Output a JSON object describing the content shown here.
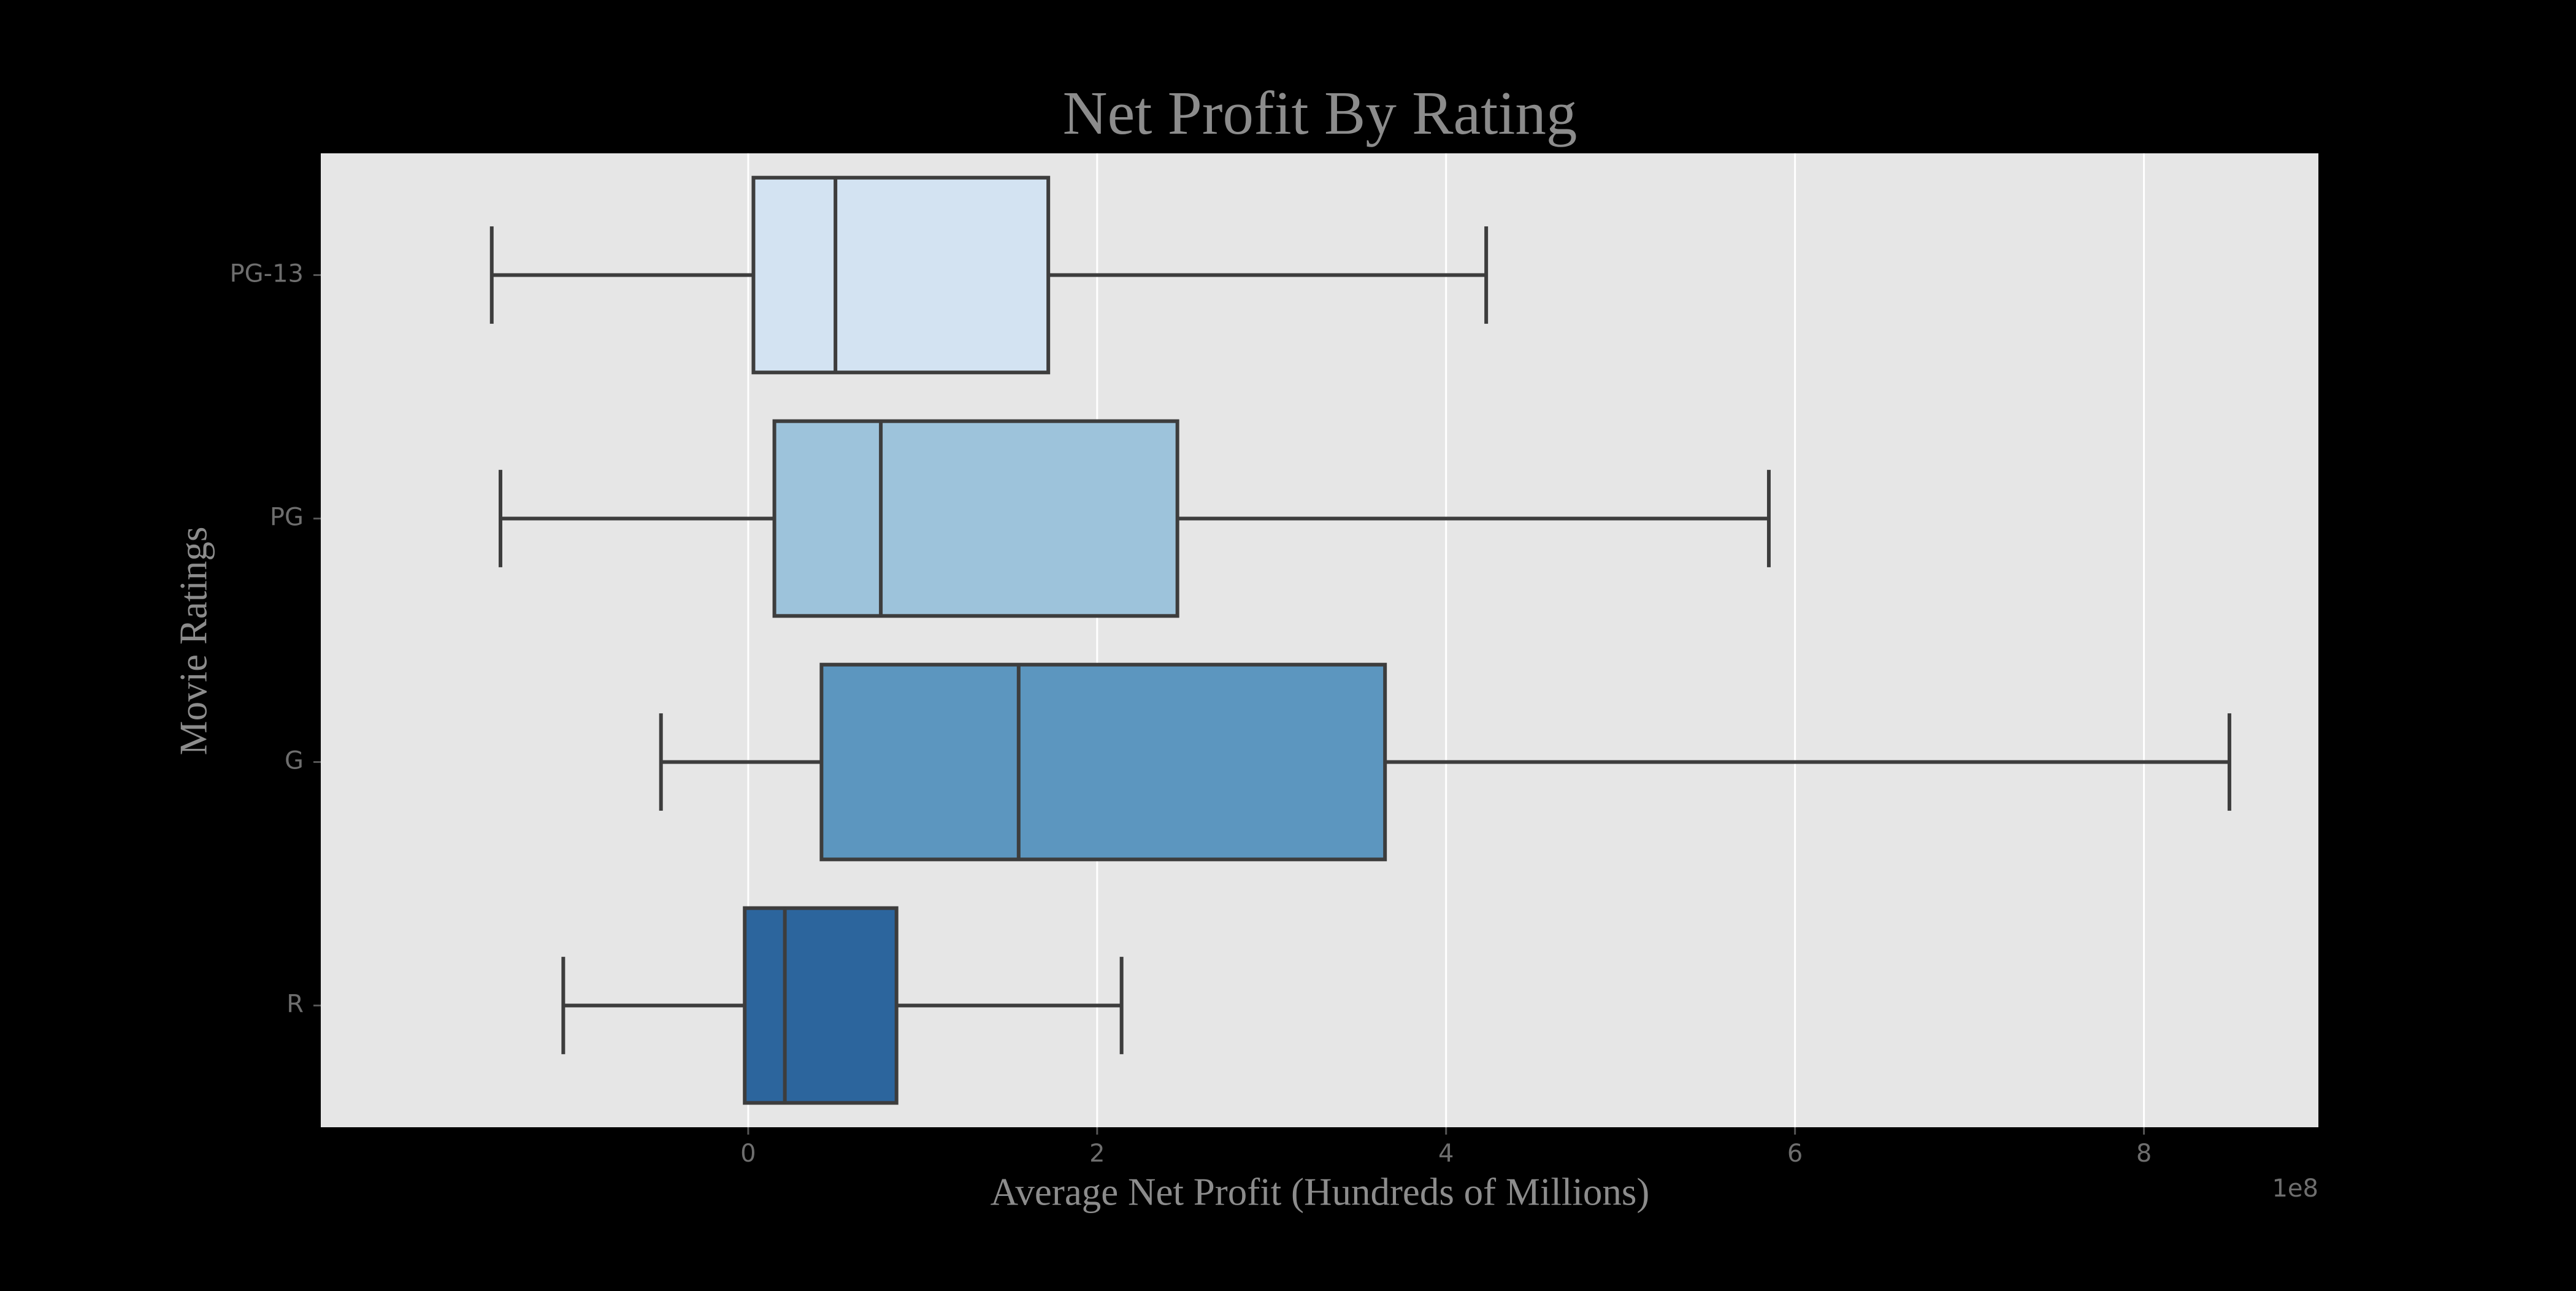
{
  "chart_data": {
    "type": "box",
    "orientation": "horizontal",
    "title": "Net Profit By Rating",
    "xlabel": "Average Net Profit (Hundreds of Millions)",
    "ylabel": "Movie Ratings",
    "x_offset_label": "1e8",
    "xlim": [
      -2.45,
      9.0
    ],
    "xticks": [
      0,
      2,
      4,
      6,
      8
    ],
    "xtick_labels": [
      "0",
      "2",
      "4",
      "6",
      "8"
    ],
    "grid": true,
    "categories": [
      "PG-13",
      "PG",
      "G",
      "R"
    ],
    "boxes": [
      {
        "category": "PG-13",
        "whisker_low": -1.47,
        "q1": 0.03,
        "median": 0.5,
        "q3": 1.72,
        "whisker_high": 4.23,
        "color": "#d3e3f2"
      },
      {
        "category": "PG",
        "whisker_low": -1.42,
        "q1": 0.15,
        "median": 0.76,
        "q3": 2.46,
        "whisker_high": 5.85,
        "color": "#9dc3db"
      },
      {
        "category": "G",
        "whisker_low": -0.5,
        "q1": 0.42,
        "median": 1.55,
        "q3": 3.65,
        "whisker_high": 8.49,
        "color": "#5c96bf"
      },
      {
        "category": "R",
        "whisker_low": -1.06,
        "q1": -0.02,
        "median": 0.21,
        "q3": 0.85,
        "whisker_high": 2.14,
        "color": "#2c659d"
      }
    ],
    "colors": {
      "plot_background": "#e6e6e6",
      "figure_background": "#000000",
      "grid": "#ffffff",
      "box_edge": "#3d3d3d"
    }
  }
}
